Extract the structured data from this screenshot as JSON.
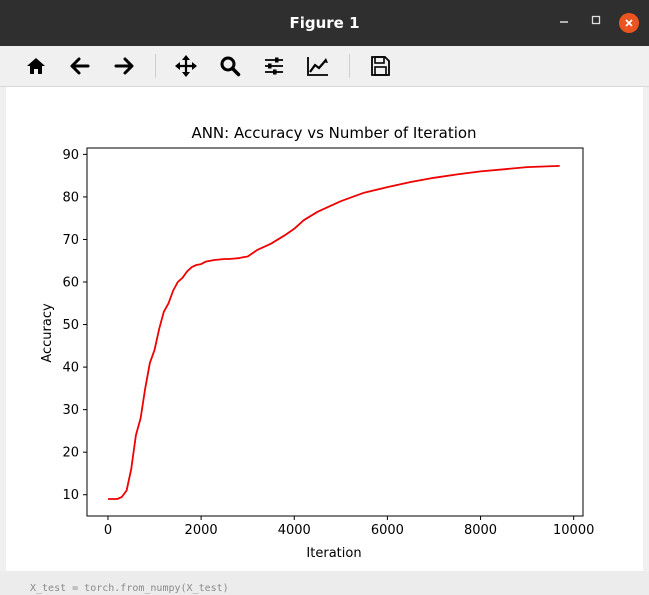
{
  "window": {
    "title": "Figure 1"
  },
  "toolbar": {
    "buttons": [
      {
        "name": "home",
        "icon": "home-icon"
      },
      {
        "name": "back",
        "icon": "arrow-left-icon"
      },
      {
        "name": "forward",
        "icon": "arrow-right-icon"
      },
      {
        "name": "pan",
        "icon": "move-icon"
      },
      {
        "name": "zoom",
        "icon": "zoom-icon"
      },
      {
        "name": "subplots",
        "icon": "sliders-icon"
      },
      {
        "name": "customize",
        "icon": "line-chart-icon"
      },
      {
        "name": "save",
        "icon": "save-icon"
      }
    ]
  },
  "background_text": "X_test = torch.from_numpy(X_test)",
  "colors": {
    "line": "#ee0000",
    "close_button": "#e95420",
    "titlebar": "#2f2f2f"
  },
  "chart_data": {
    "type": "line",
    "title": "ANN: Accuracy vs Number of Iteration",
    "xlabel": "Iteration",
    "ylabel": "Accuracy",
    "xlim": [
      -450,
      10200
    ],
    "ylim": [
      5,
      91.5
    ],
    "xticks": [
      0,
      2000,
      4000,
      6000,
      8000,
      10000
    ],
    "yticks": [
      10,
      20,
      30,
      40,
      50,
      60,
      70,
      80,
      90
    ],
    "grid": false,
    "series": [
      {
        "color": "#ee0000",
        "x": [
          0,
          200,
          300,
          400,
          500,
          600,
          700,
          800,
          900,
          1000,
          1100,
          1200,
          1300,
          1400,
          1500,
          1600,
          1700,
          1800,
          1900,
          2000,
          2100,
          2200,
          2300,
          2400,
          2500,
          2600,
          2700,
          2800,
          2900,
          3000,
          3200,
          3500,
          3800,
          4000,
          4200,
          4500,
          5000,
          5500,
          6000,
          6500,
          7000,
          7500,
          8000,
          8500,
          9000,
          9700
        ],
        "y": [
          9,
          9,
          9.5,
          11,
          16,
          24,
          28,
          35,
          41,
          44,
          49,
          53,
          55,
          58,
          60,
          61,
          62.5,
          63.5,
          64,
          64.2,
          64.8,
          65,
          65.2,
          65.3,
          65.4,
          65.4,
          65.5,
          65.6,
          65.8,
          66,
          67.5,
          69,
          71,
          72.5,
          74.5,
          76.5,
          79,
          81,
          82.3,
          83.5,
          84.5,
          85.3,
          86,
          86.5,
          87,
          87.3
        ]
      }
    ]
  }
}
